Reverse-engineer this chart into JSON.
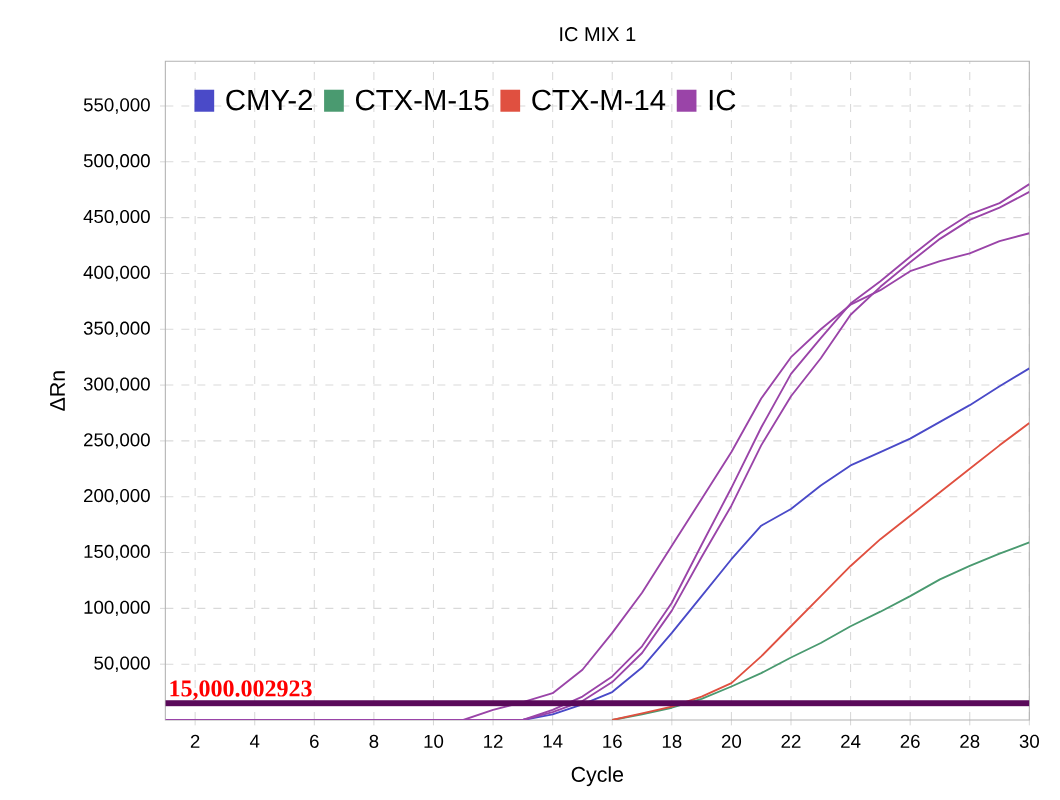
{
  "chart_data": {
    "type": "line",
    "title": "IC MIX 1",
    "xlabel": "Cycle",
    "ylabel": "ΔRn",
    "x": [
      1,
      2,
      3,
      4,
      5,
      6,
      7,
      8,
      9,
      10,
      11,
      12,
      13,
      14,
      15,
      16,
      17,
      18,
      19,
      20,
      21,
      22,
      23,
      24,
      25,
      26,
      27,
      28,
      29,
      30
    ],
    "series": [
      {
        "name": "CMY-2",
        "color": "#4a4ac8",
        "values": [
          null,
          null,
          null,
          null,
          null,
          null,
          null,
          null,
          null,
          null,
          null,
          null,
          0,
          5000,
          14000,
          25000,
          47000,
          78000,
          111000,
          144000,
          174000,
          189000,
          210000,
          228000,
          240000,
          252000,
          267000,
          282000,
          299000,
          315000
        ]
      },
      {
        "name": "CTX-M-15",
        "color": "#4a9a70",
        "values": [
          null,
          null,
          null,
          null,
          null,
          null,
          null,
          null,
          null,
          null,
          null,
          null,
          null,
          null,
          null,
          0,
          5000,
          11000,
          19000,
          30000,
          42000,
          56000,
          69000,
          84000,
          97000,
          111000,
          126000,
          138000,
          149000,
          159000
        ]
      },
      {
        "name": "CTX-M-14",
        "color": "#e05040",
        "values": [
          null,
          null,
          null,
          null,
          null,
          null,
          null,
          null,
          null,
          null,
          null,
          null,
          null,
          null,
          null,
          0,
          6000,
          12000,
          21000,
          33000,
          57000,
          84000,
          111000,
          138000,
          162000,
          183000,
          204000,
          225000,
          246000,
          266000
        ]
      },
      {
        "name": "IC",
        "color": "#9a44a8",
        "values": [
          null,
          null,
          null,
          null,
          null,
          null,
          null,
          null,
          null,
          null,
          0,
          9000,
          16000,
          24000,
          45000,
          78000,
          114000,
          156000,
          198000,
          240000,
          288000,
          325000,
          350000,
          372000,
          385000,
          402000,
          411000,
          418000,
          429000,
          436000
        ]
      },
      {
        "color": "#9a44a8",
        "values": [
          null,
          null,
          null,
          null,
          null,
          null,
          null,
          null,
          null,
          null,
          null,
          null,
          0,
          9000,
          21000,
          39000,
          66000,
          105000,
          157000,
          208000,
          262000,
          310000,
          342000,
          373000,
          393000,
          415000,
          436000,
          453000,
          463000,
          480000
        ]
      },
      {
        "color": "#9a44a8",
        "values": [
          0,
          0,
          0,
          0,
          0,
          0,
          0,
          0,
          0,
          0,
          0,
          0,
          0,
          7000,
          17000,
          34000,
          60000,
          98000,
          146000,
          192000,
          246000,
          290000,
          324000,
          363000,
          388000,
          410000,
          431000,
          448000,
          459000,
          473000
        ]
      }
    ],
    "xlim": [
      1,
      30
    ],
    "ylim": [
      0,
      590000
    ],
    "xticks": [
      2,
      4,
      6,
      8,
      10,
      12,
      14,
      16,
      18,
      20,
      22,
      24,
      26,
      28,
      30
    ],
    "yticks": [
      {
        "value": 50000,
        "label": "50,000"
      },
      {
        "value": 100000,
        "label": "100,000"
      },
      {
        "value": 150000,
        "label": "150,000"
      },
      {
        "value": 200000,
        "label": "200,000"
      },
      {
        "value": 250000,
        "label": "250,000"
      },
      {
        "value": 300000,
        "label": "300,000"
      },
      {
        "value": 350000,
        "label": "350,000"
      },
      {
        "value": 400000,
        "label": "400,000"
      },
      {
        "value": 450000,
        "label": "450,000"
      },
      {
        "value": 500000,
        "label": "500,000"
      },
      {
        "value": 550000,
        "label": "550,000"
      }
    ],
    "ref_lines": [
      {
        "axis": "y",
        "value": 15000.002923,
        "label": "15,000.002923",
        "color": "#5a0a5a"
      }
    ],
    "grid": true,
    "legend": "top left",
    "marker": "none",
    "line_style": "solid"
  }
}
